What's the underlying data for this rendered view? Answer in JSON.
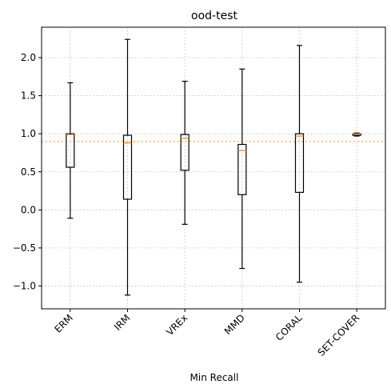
{
  "chart_data": {
    "type": "box",
    "title": "ood-test",
    "xlabel": "Min Recall",
    "ylabel": "",
    "categories": [
      "ERM",
      "IRM",
      "VREx",
      "MMD",
      "CORAL",
      "SET-COVER"
    ],
    "boxes": [
      {
        "whisker_low": -0.11,
        "q1": 0.56,
        "median": 0.99,
        "q3": 1.0,
        "whisker_high": 1.67
      },
      {
        "whisker_low": -1.12,
        "q1": 0.14,
        "median": 0.88,
        "q3": 0.98,
        "whisker_high": 2.24
      },
      {
        "whisker_low": -0.19,
        "q1": 0.52,
        "median": 0.94,
        "q3": 0.99,
        "whisker_high": 1.69
      },
      {
        "whisker_low": -0.77,
        "q1": 0.2,
        "median": 0.78,
        "q3": 0.86,
        "whisker_high": 1.85
      },
      {
        "whisker_low": -0.95,
        "q1": 0.23,
        "median": 0.97,
        "q3": 1.0,
        "whisker_high": 2.16
      },
      {
        "whisker_low": 0.97,
        "q1": 0.98,
        "median": 1.0,
        "q3": 1.0,
        "whisker_high": 1.01
      }
    ],
    "reference_line": {
      "y": 0.9,
      "style": "dotted",
      "color": "#f5b971"
    },
    "yticks": [
      -1.0,
      -0.5,
      0.0,
      0.5,
      1.0,
      1.5,
      2.0
    ],
    "ytick_labels": [
      "−1.0",
      "−0.5",
      "0.0",
      "0.5",
      "1.0",
      "1.5",
      "2.0"
    ],
    "ylim": [
      -1.3,
      2.4
    ],
    "grid": true,
    "x_tick_rotation": 45,
    "colors": {
      "box": "#000000",
      "median": "#ff7f0e",
      "grid": "#cccccc"
    }
  }
}
